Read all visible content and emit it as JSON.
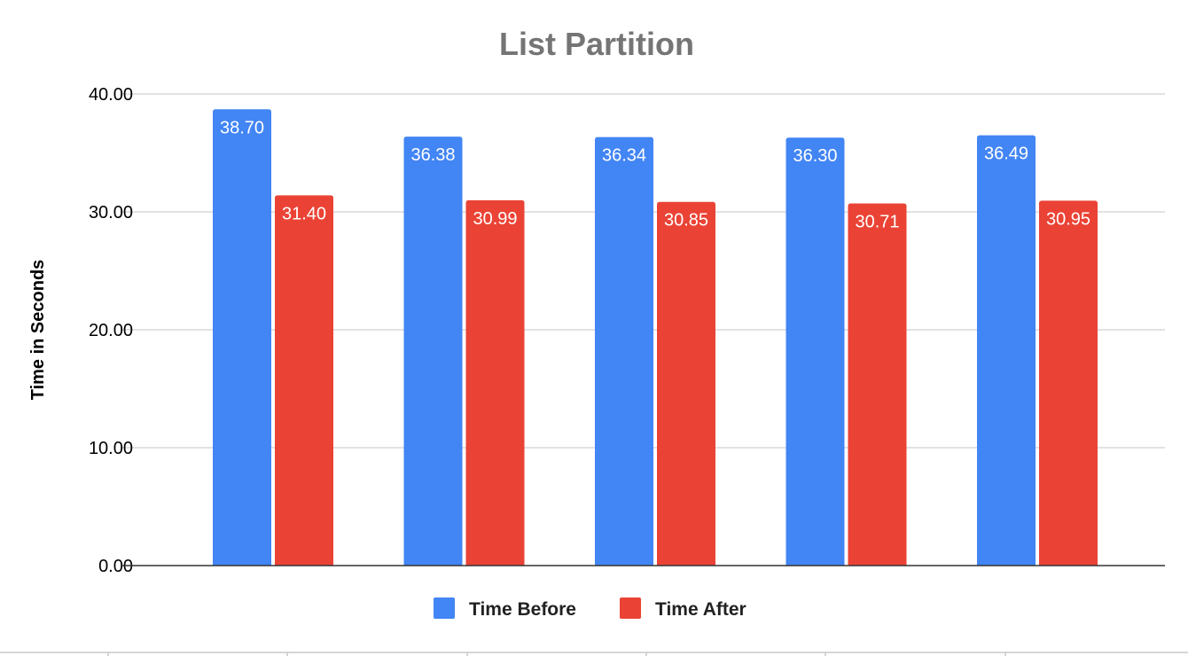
{
  "chart_data": {
    "type": "bar",
    "title": "List Partition",
    "xlabel": "",
    "ylabel": "Time in Seconds",
    "ylim": [
      0,
      40
    ],
    "yticks": [
      "0.00",
      "10.00",
      "20.00",
      "30.00",
      "40.00"
    ],
    "yticks_values": [
      0,
      10,
      20,
      30,
      40
    ],
    "categories": [
      "",
      "",
      "",
      "",
      ""
    ],
    "grid": true,
    "legend_position": "bottom",
    "series": [
      {
        "name": "Time Before",
        "color": "#4285F4",
        "values": [
          38.7,
          36.38,
          36.34,
          36.3,
          36.49
        ],
        "labels": [
          "38.70",
          "36.38",
          "36.34",
          "36.30",
          "36.49"
        ]
      },
      {
        "name": "Time After",
        "color": "#EA4335",
        "values": [
          31.4,
          30.99,
          30.85,
          30.71,
          30.95
        ],
        "labels": [
          "31.40",
          "30.99",
          "30.85",
          "30.71",
          "30.95"
        ]
      }
    ]
  }
}
